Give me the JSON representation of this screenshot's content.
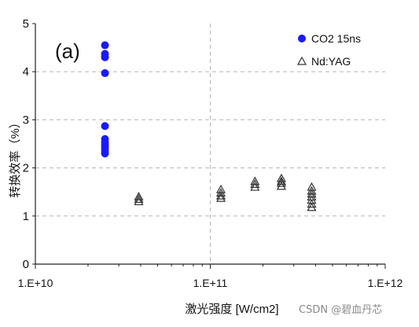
{
  "panel_label": "(a)",
  "watermark": "CSDN @碧血丹芯",
  "chart_data": {
    "type": "scatter",
    "x_scale": "log",
    "xlabel": "激光强度 [W/cm2]",
    "ylabel": "转换效率（%）",
    "xlim": [
      10000000000.0,
      1000000000000.0
    ],
    "ylim": [
      0,
      5
    ],
    "x_ticks": [
      {
        "value": 10000000000.0,
        "label": "1.E+10"
      },
      {
        "value": 100000000000.0,
        "label": "1.E+11"
      },
      {
        "value": 1000000000000.0,
        "label": "1.E+12"
      }
    ],
    "y_ticks": [
      {
        "value": 0,
        "label": "0"
      },
      {
        "value": 1,
        "label": "1"
      },
      {
        "value": 2,
        "label": "2"
      },
      {
        "value": 3,
        "label": "3"
      },
      {
        "value": 4,
        "label": "4"
      },
      {
        "value": 5,
        "label": "5"
      }
    ],
    "grid": "dashed",
    "legend_position": "top-right",
    "series": [
      {
        "name": "CO2 15ns",
        "marker": "filled-circle",
        "color": "#1a1aff",
        "points": [
          {
            "x": 25000000000.0,
            "y": 4.55
          },
          {
            "x": 25000000000.0,
            "y": 4.37
          },
          {
            "x": 25000000000.0,
            "y": 4.3
          },
          {
            "x": 25000000000.0,
            "y": 3.97
          },
          {
            "x": 25000000000.0,
            "y": 2.87
          },
          {
            "x": 25000000000.0,
            "y": 2.6
          },
          {
            "x": 25000000000.0,
            "y": 2.53
          },
          {
            "x": 25000000000.0,
            "y": 2.47
          },
          {
            "x": 25000000000.0,
            "y": 2.42
          },
          {
            "x": 25000000000.0,
            "y": 2.36
          },
          {
            "x": 25000000000.0,
            "y": 2.3
          }
        ]
      },
      {
        "name": "Nd:YAG",
        "marker": "open-triangle",
        "color": "#333333",
        "points": [
          {
            "x": 39000000000.0,
            "y": 1.4
          },
          {
            "x": 39000000000.0,
            "y": 1.35
          },
          {
            "x": 39000000000.0,
            "y": 1.3
          },
          {
            "x": 115000000000.0,
            "y": 1.55
          },
          {
            "x": 115000000000.0,
            "y": 1.48
          },
          {
            "x": 115000000000.0,
            "y": 1.42
          },
          {
            "x": 115000000000.0,
            "y": 1.37
          },
          {
            "x": 180000000000.0,
            "y": 1.72
          },
          {
            "x": 180000000000.0,
            "y": 1.66
          },
          {
            "x": 180000000000.0,
            "y": 1.6
          },
          {
            "x": 255000000000.0,
            "y": 1.78
          },
          {
            "x": 255000000000.0,
            "y": 1.72
          },
          {
            "x": 255000000000.0,
            "y": 1.68
          },
          {
            "x": 255000000000.0,
            "y": 1.62
          },
          {
            "x": 380000000000.0,
            "y": 1.6
          },
          {
            "x": 380000000000.0,
            "y": 1.52
          },
          {
            "x": 380000000000.0,
            "y": 1.46
          },
          {
            "x": 380000000000.0,
            "y": 1.4
          },
          {
            "x": 380000000000.0,
            "y": 1.33
          },
          {
            "x": 380000000000.0,
            "y": 1.25
          },
          {
            "x": 380000000000.0,
            "y": 1.18
          }
        ]
      }
    ]
  }
}
